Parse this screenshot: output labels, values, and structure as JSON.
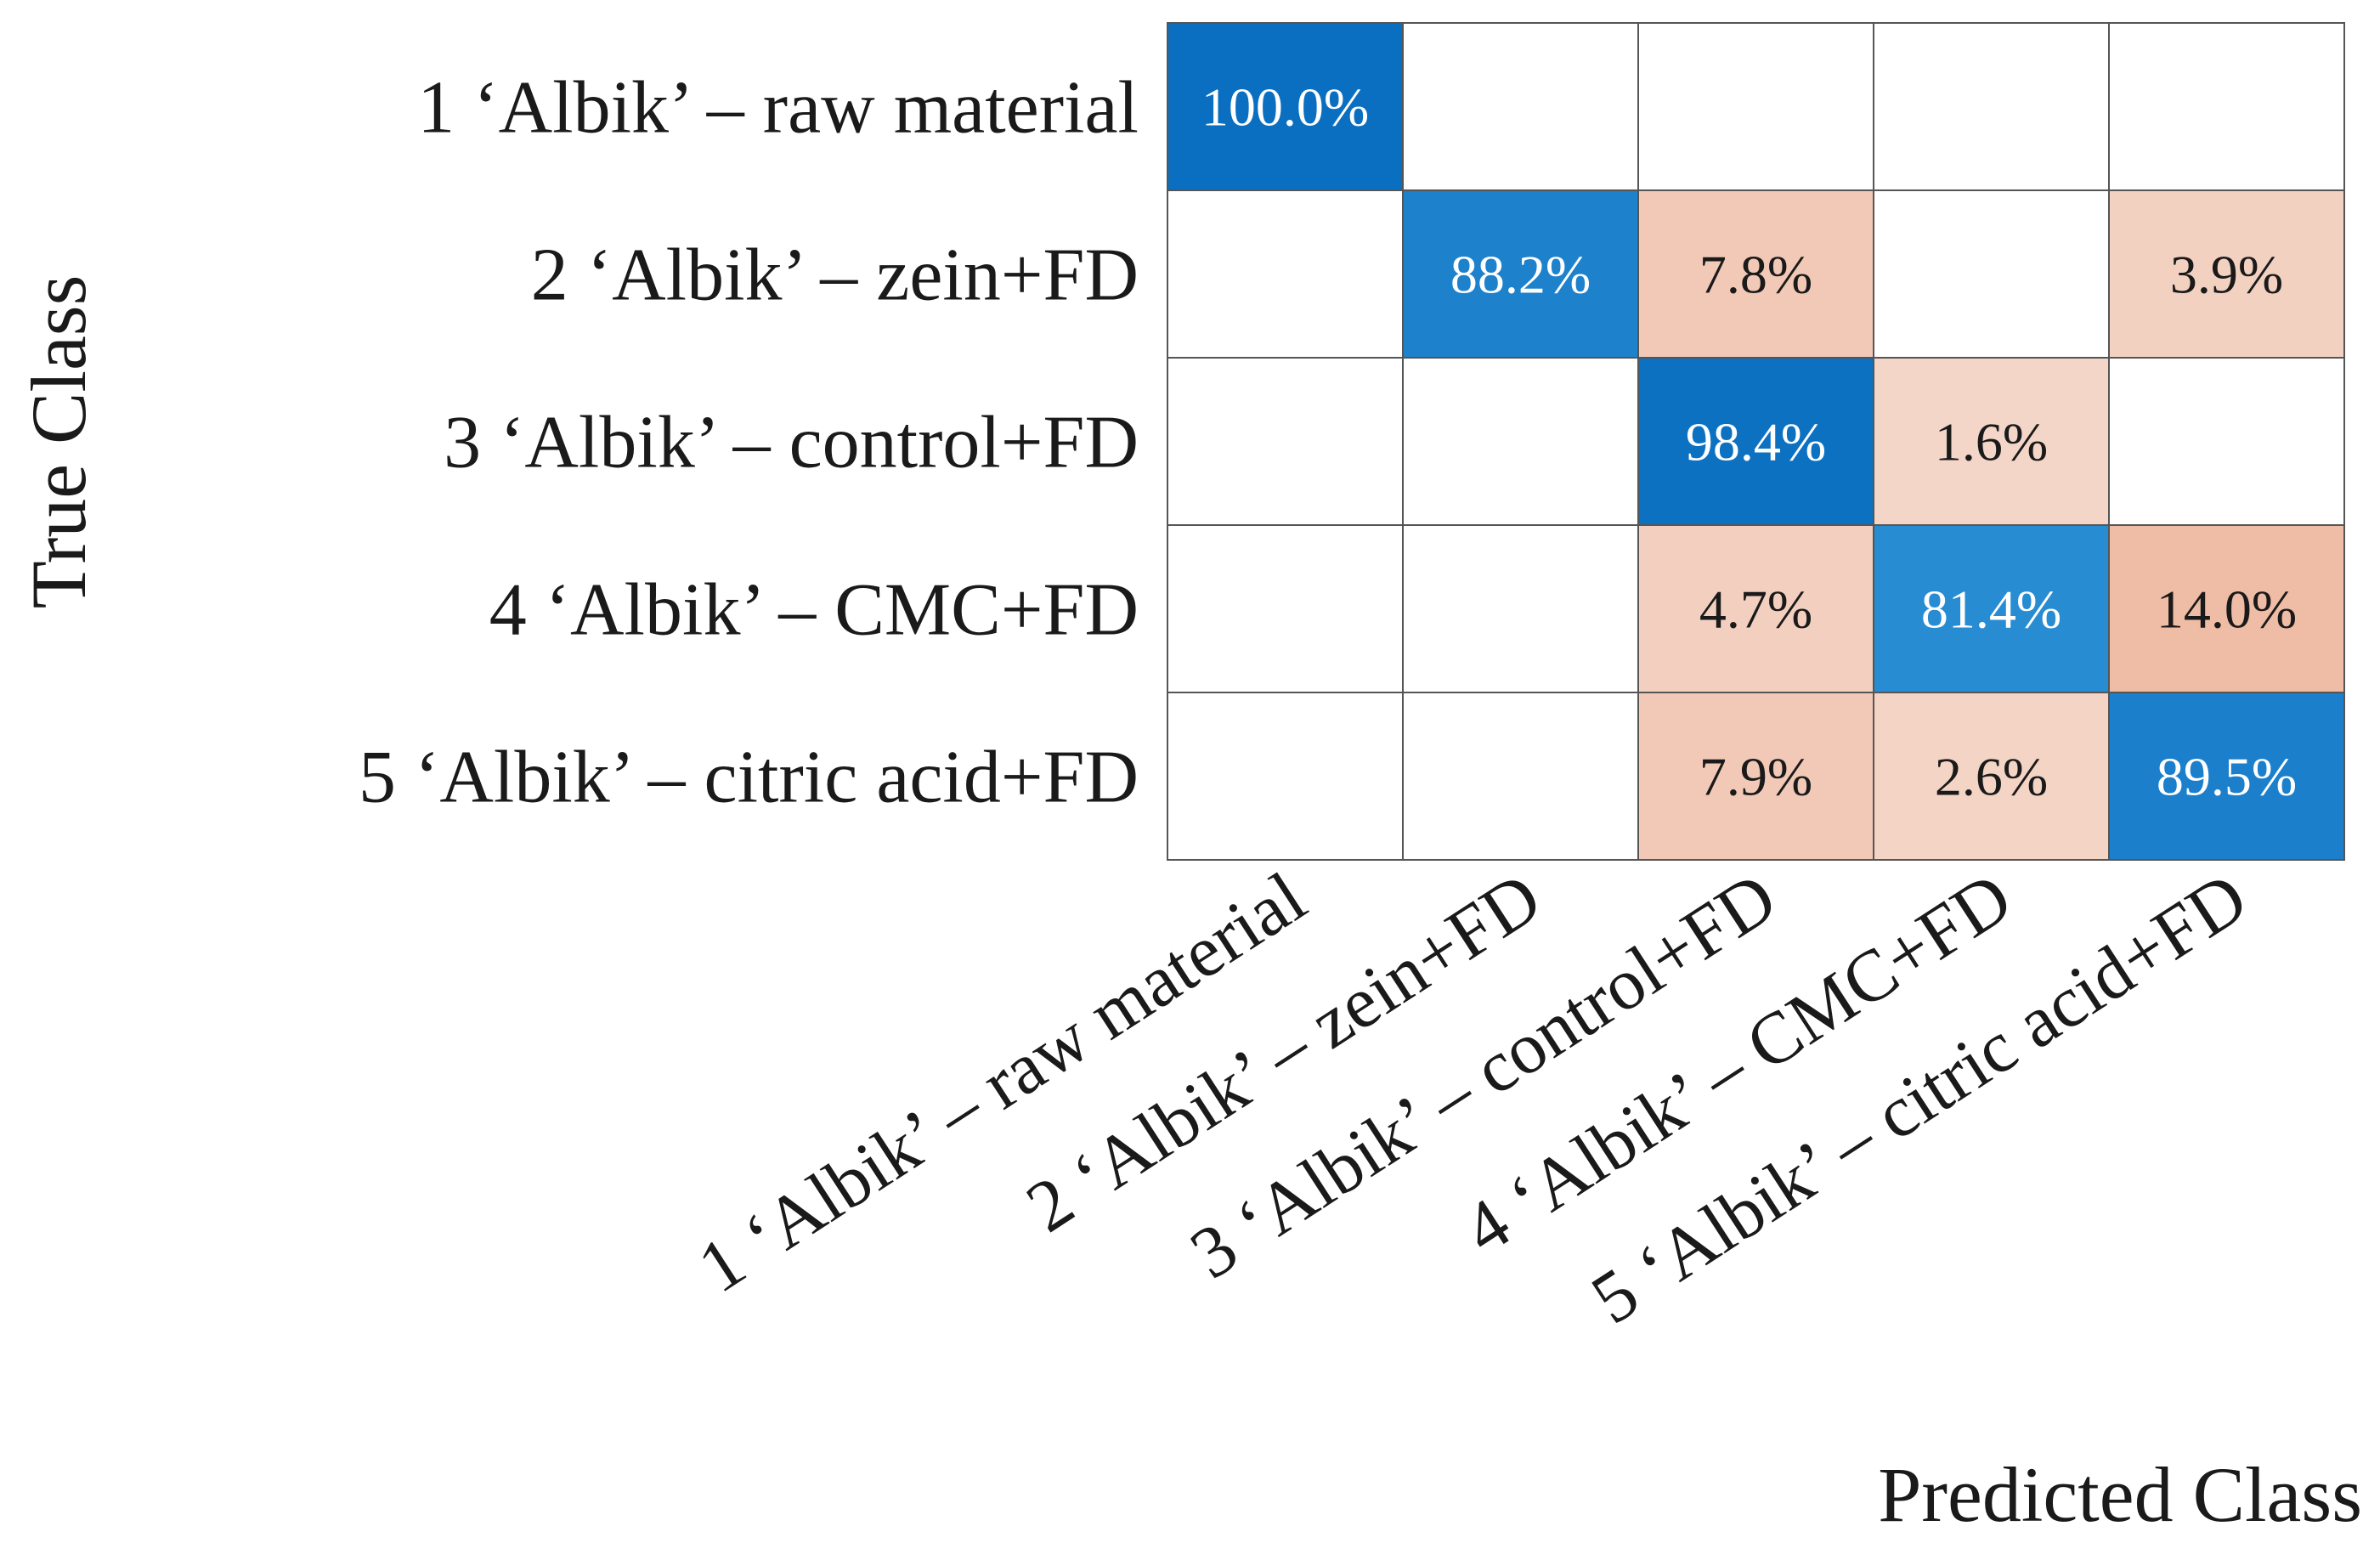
{
  "chart_data": {
    "type": "heatmap",
    "title": "",
    "xlabel": "Predicted Class",
    "ylabel": "True Class",
    "row_labels": [
      "1 ‘Albik’ – raw material",
      "2 ‘Albik’ – zein+FD",
      "3 ‘Albik’ – control+FD",
      "4 ‘Albik’ – CMC+FD",
      "5 ‘Albik’ – citric acid+FD"
    ],
    "col_labels": [
      "1 ‘Albik’ – raw material",
      "2 ‘Albik’ – zein+FD",
      "3 ‘Albik’ – control+FD",
      "4 ‘Albik’ – CMC+FD",
      "5 ‘Albik’ – citric acid+FD"
    ],
    "values": [
      [
        100.0,
        null,
        null,
        null,
        null
      ],
      [
        null,
        88.2,
        7.8,
        null,
        3.9
      ],
      [
        null,
        null,
        98.4,
        1.6,
        null
      ],
      [
        null,
        null,
        4.7,
        81.4,
        14.0
      ],
      [
        null,
        null,
        7.9,
        2.6,
        89.5
      ]
    ],
    "value_format": "percent_1dp",
    "colors": {
      "correct_dark": "#0a6fc0",
      "correct_light": "#2a8ed4",
      "error_light": "#f5d9cc",
      "error_dark": "#efbca6",
      "empty": "#ffffff",
      "grid": "#555555"
    }
  }
}
